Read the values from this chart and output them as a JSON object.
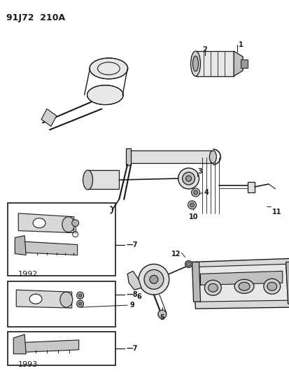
{
  "title": "91J72  210A",
  "bg": "#ffffff",
  "lc": "#1a1a1a",
  "fig_w": 4.14,
  "fig_h": 5.33,
  "dpi": 100
}
